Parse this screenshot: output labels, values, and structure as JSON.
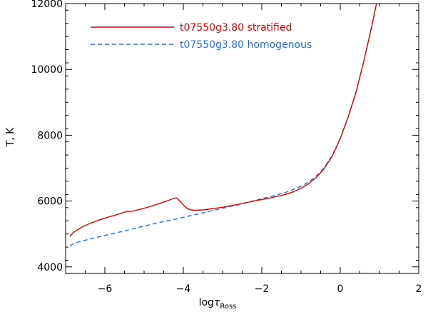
{
  "chart_data": {
    "type": "line",
    "title": "",
    "xlabel_main": "log",
    "xlabel_tau": "τ",
    "xlabel_sub": "Ross",
    "ylabel": "T, K",
    "xlim": [
      -7,
      2
    ],
    "ylim": [
      3800,
      12000
    ],
    "x_ticks": [
      -6,
      -4,
      -2,
      0,
      2
    ],
    "x_tick_labels": [
      "−6",
      "−4",
      "−2",
      "0",
      "2"
    ],
    "y_ticks": [
      4000,
      6000,
      8000,
      10000,
      12000
    ],
    "y_tick_labels": [
      "4000",
      "6000",
      "8000",
      "10000",
      "12000"
    ],
    "grid": false,
    "legend_position": "top-left",
    "series": [
      {
        "name": "t07550g3.80 stratified",
        "color": "#e60000",
        "dash": "solid",
        "x": [
          -6.89,
          -6.8,
          -6.6,
          -6.4,
          -6.2,
          -6.0,
          -5.8,
          -5.6,
          -5.45,
          -5.3,
          -5.0,
          -4.8,
          -4.6,
          -4.4,
          -4.25,
          -4.18,
          -4.1,
          -4.0,
          -3.9,
          -3.8,
          -3.7,
          -3.5,
          -3.3,
          -3.0,
          -2.6,
          -2.2,
          -1.8,
          -1.4,
          -1.2,
          -1.0,
          -0.8,
          -0.6,
          -0.4,
          -0.2,
          0.0,
          0.2,
          0.4,
          0.6,
          0.8,
          0.95
        ],
        "y": [
          4930,
          5050,
          5200,
          5310,
          5400,
          5480,
          5550,
          5620,
          5680,
          5690,
          5780,
          5850,
          5930,
          6010,
          6080,
          6100,
          6020,
          5880,
          5770,
          5730,
          5720,
          5730,
          5760,
          5810,
          5900,
          6000,
          6090,
          6200,
          6280,
          6390,
          6530,
          6730,
          7000,
          7380,
          7900,
          8550,
          9300,
          10250,
          11300,
          12150
        ]
      },
      {
        "name": "t07550g3.80 homogenous",
        "color": "#1f6fe0",
        "dash": "dashed",
        "x": [
          -6.89,
          -6.8,
          -6.6,
          -6.2,
          -5.8,
          -5.4,
          -5.0,
          -4.6,
          -4.2,
          -3.8,
          -3.4,
          -3.0,
          -2.6,
          -2.2,
          -1.8,
          -1.4,
          -1.2,
          -1.0,
          -0.8,
          -0.6,
          -0.4,
          -0.2,
          0.0,
          0.2,
          0.4,
          0.6,
          0.8,
          0.95
        ],
        "y": [
          4640,
          4710,
          4780,
          4900,
          5010,
          5120,
          5240,
          5350,
          5450,
          5560,
          5670,
          5780,
          5890,
          6010,
          6130,
          6260,
          6350,
          6450,
          6580,
          6770,
          7030,
          7400,
          7900,
          8550,
          9300,
          10250,
          11300,
          12150
        ]
      }
    ]
  }
}
